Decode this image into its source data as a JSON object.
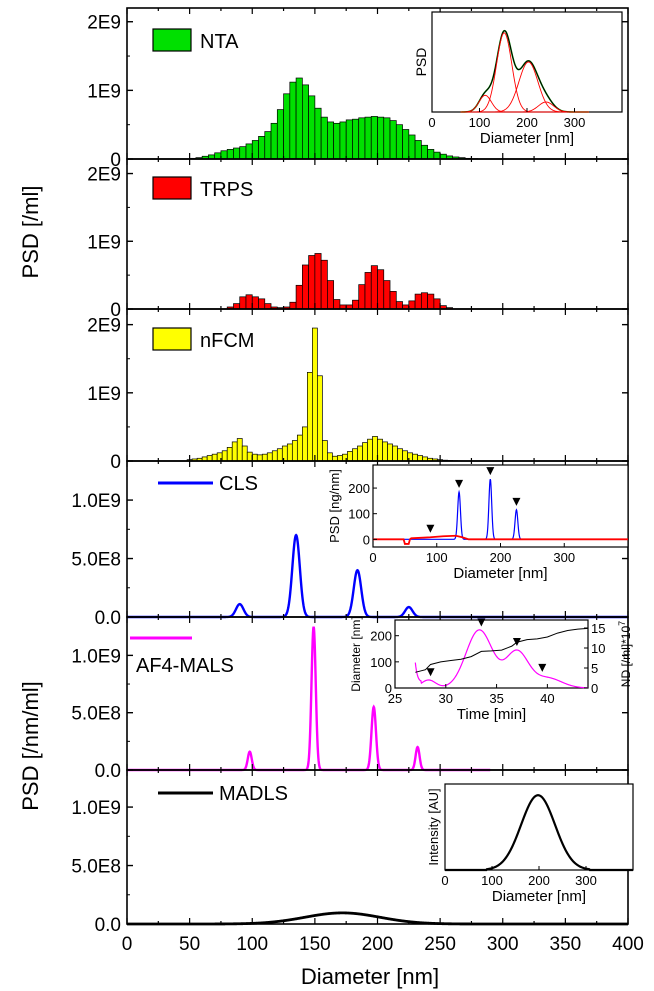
{
  "figure": {
    "xlabel": "Diameter [nm]",
    "ylabel_top": "PSD [/ml]",
    "ylabel_bottom": "PSD [/nm/ml]",
    "x_ticks": [
      "0",
      "50",
      "100",
      "150",
      "200",
      "250",
      "300",
      "350",
      "400"
    ]
  },
  "chart_data": [
    {
      "id": "nta",
      "type": "bar",
      "legend": "NTA",
      "color": "#00e000",
      "xlim": [
        0,
        400
      ],
      "ylim": [
        0,
        2200000000
      ],
      "y_ticks": [
        {
          "v": 0,
          "label": "0"
        },
        {
          "v": 1000000000,
          "label": "1E9"
        },
        {
          "v": 2000000000,
          "label": "2E9"
        }
      ],
      "bin_width": 5,
      "bin_centers": [
        52.5,
        57.5,
        62.5,
        67.5,
        72.5,
        77.5,
        82.5,
        87.5,
        92.5,
        97.5,
        102.5,
        107.5,
        112.5,
        117.5,
        122.5,
        127.5,
        132.5,
        137.5,
        142.5,
        147.5,
        152.5,
        157.5,
        162.5,
        167.5,
        172.5,
        177.5,
        182.5,
        187.5,
        192.5,
        197.5,
        202.5,
        207.5,
        212.5,
        217.5,
        222.5,
        227.5,
        232.5,
        237.5,
        242.5,
        247.5,
        252.5,
        257.5,
        262.5,
        267.5,
        272.5,
        277.5
      ],
      "values": [
        10000000,
        20000000,
        40000000,
        60000000,
        90000000,
        120000000,
        140000000,
        160000000,
        180000000,
        220000000,
        270000000,
        330000000,
        400000000,
        520000000,
        720000000,
        950000000,
        1120000000,
        1180000000,
        1080000000,
        920000000,
        740000000,
        610000000,
        540000000,
        520000000,
        540000000,
        570000000,
        580000000,
        600000000,
        610000000,
        620000000,
        610000000,
        600000000,
        560000000,
        500000000,
        430000000,
        350000000,
        270000000,
        200000000,
        140000000,
        100000000,
        70000000,
        45000000,
        30000000,
        20000000,
        10000000,
        5000000
      ]
    },
    {
      "id": "trps",
      "type": "bar",
      "legend": "TRPS",
      "color": "#ff0000",
      "xlim": [
        0,
        400
      ],
      "ylim": [
        0,
        2200000000
      ],
      "y_ticks": [
        {
          "v": 0,
          "label": "0"
        },
        {
          "v": 1000000000,
          "label": "1E9"
        },
        {
          "v": 2000000000,
          "label": "2E9"
        }
      ],
      "bin_width": 5,
      "bin_centers": [
        82.5,
        87.5,
        92.5,
        97.5,
        102.5,
        107.5,
        112.5,
        117.5,
        122.5,
        127.5,
        132.5,
        137.5,
        142.5,
        147.5,
        152.5,
        157.5,
        162.5,
        167.5,
        172.5,
        177.5,
        182.5,
        187.5,
        192.5,
        197.5,
        202.5,
        207.5,
        212.5,
        217.5,
        222.5,
        227.5,
        232.5,
        237.5,
        242.5,
        247.5,
        252.5,
        257.5
      ],
      "values": [
        30000000,
        80000000,
        180000000,
        210000000,
        180000000,
        150000000,
        80000000,
        30000000,
        20000000,
        30000000,
        100000000,
        350000000,
        650000000,
        790000000,
        820000000,
        720000000,
        420000000,
        140000000,
        60000000,
        60000000,
        130000000,
        360000000,
        540000000,
        640000000,
        580000000,
        420000000,
        260000000,
        110000000,
        60000000,
        120000000,
        220000000,
        240000000,
        220000000,
        150000000,
        50000000,
        20000000
      ]
    },
    {
      "id": "nfcm",
      "type": "bar",
      "legend": "nFCM",
      "color": "#ffff00",
      "xlim": [
        0,
        400
      ],
      "ylim": [
        0,
        2200000000
      ],
      "y_ticks": [
        {
          "v": 0,
          "label": "0"
        },
        {
          "v": 1000000000,
          "label": "1E9"
        },
        {
          "v": 2000000000,
          "label": "2E9"
        }
      ],
      "bin_width": 4,
      "bin_centers": [
        50,
        54,
        58,
        62,
        66,
        70,
        74,
        78,
        82,
        86,
        90,
        94,
        98,
        102,
        106,
        110,
        114,
        118,
        122,
        126,
        130,
        134,
        138,
        142,
        146,
        150,
        154,
        158,
        162,
        166,
        170,
        174,
        178,
        182,
        186,
        190,
        194,
        198,
        202,
        206,
        210,
        214,
        218,
        222,
        226,
        230,
        234,
        238,
        242,
        246,
        250,
        254,
        258,
        262,
        266,
        270,
        274,
        278
      ],
      "values": [
        20000000,
        30000000,
        40000000,
        60000000,
        80000000,
        100000000,
        120000000,
        150000000,
        200000000,
        280000000,
        330000000,
        220000000,
        130000000,
        100000000,
        90000000,
        100000000,
        120000000,
        150000000,
        180000000,
        220000000,
        250000000,
        300000000,
        380000000,
        500000000,
        1300000000,
        1950000000,
        1250000000,
        300000000,
        120000000,
        70000000,
        80000000,
        100000000,
        140000000,
        180000000,
        220000000,
        270000000,
        320000000,
        360000000,
        320000000,
        280000000,
        250000000,
        220000000,
        180000000,
        150000000,
        120000000,
        100000000,
        80000000,
        60000000,
        40000000,
        30000000,
        20000000,
        12000000,
        8000000,
        5000000,
        3000000,
        2000000,
        1000000,
        500000
      ]
    },
    {
      "id": "cls",
      "type": "line",
      "legend": "CLS",
      "color": "#0000ff",
      "xlim": [
        0,
        400
      ],
      "ylim": [
        0,
        1300000000
      ],
      "y_ticks": [
        {
          "v": 0,
          "label": "0.0"
        },
        {
          "v": 500000000,
          "label": "5.0E8"
        },
        {
          "v": 1000000000,
          "label": "1.0E9"
        }
      ],
      "peaks": [
        {
          "center": 90,
          "height": 110000000,
          "sigma": 3
        },
        {
          "center": 135,
          "height": 700000000,
          "sigma": 3
        },
        {
          "center": 184,
          "height": 400000000,
          "sigma": 3
        },
        {
          "center": 225,
          "height": 85000000,
          "sigma": 3
        }
      ],
      "x_range": [
        0,
        400
      ]
    },
    {
      "id": "af4",
      "type": "line",
      "legend": "AF4-MALS",
      "color": "#ff00ff",
      "xlim": [
        0,
        400
      ],
      "ylim": [
        0,
        1300000000
      ],
      "y_ticks": [
        {
          "v": 0,
          "label": "0.0"
        },
        {
          "v": 500000000,
          "label": "5.0E8"
        },
        {
          "v": 1000000000,
          "label": "1.0E9"
        }
      ],
      "peaks": [
        {
          "center": 98,
          "height": 160000000,
          "sigma": 1.6
        },
        {
          "center": 149,
          "height": 1250000000,
          "sigma": 1.7
        },
        {
          "center": 197,
          "height": 550000000,
          "sigma": 1.8
        },
        {
          "center": 232,
          "height": 200000000,
          "sigma": 1.6
        }
      ],
      "x_range": [
        0,
        290
      ]
    },
    {
      "id": "madls",
      "type": "line",
      "legend": "MADLS",
      "color": "#000000",
      "xlim": [
        0,
        400
      ],
      "ylim": [
        0,
        1300000000
      ],
      "y_ticks": [
        {
          "v": 0,
          "label": "0.0"
        },
        {
          "v": 500000000,
          "label": "5.0E8"
        },
        {
          "v": 1000000000,
          "label": "1.0E9"
        }
      ],
      "peaks": [
        {
          "center": 172,
          "height": 95000000,
          "sigma": 30
        }
      ],
      "x_range": [
        0,
        400
      ]
    }
  ],
  "insets": [
    {
      "id": "nta-inset",
      "xlabel": "Diameter [nm]",
      "ylabel": "PSD",
      "x_ticks": [
        {
          "v": 0,
          "label": "0"
        },
        {
          "v": 100,
          "label": "100"
        },
        {
          "v": 200,
          "label": "200"
        },
        {
          "v": 300,
          "label": "300"
        }
      ],
      "xlim": [
        0,
        400
      ],
      "ylim": [
        0,
        1.2
      ],
      "series": [
        {
          "color": "#00a000",
          "components": [
            {
              "c": 112,
              "h": 0.2,
              "s": 13
            },
            {
              "c": 152,
              "h": 0.95,
              "s": 16
            },
            {
              "c": 203,
              "h": 0.6,
              "s": 20
            },
            {
              "c": 240,
              "h": 0.12,
              "s": 16
            }
          ],
          "width": 1.6
        },
        {
          "color": "#000000",
          "components": [
            {
              "c": 112,
              "h": 0.2,
              "s": 13
            },
            {
              "c": 152,
              "h": 0.95,
              "s": 16
            },
            {
              "c": 203,
              "h": 0.6,
              "s": 20
            },
            {
              "c": 240,
              "h": 0.12,
              "s": 16
            }
          ],
          "width": 1.0
        },
        {
          "color": "#ff0000",
          "components": [
            {
              "c": 112,
              "h": 0.2,
              "s": 13
            }
          ],
          "width": 0.9
        },
        {
          "color": "#ff0000",
          "components": [
            {
              "c": 152,
              "h": 0.95,
              "s": 16
            }
          ],
          "width": 0.9
        },
        {
          "color": "#ff0000",
          "components": [
            {
              "c": 203,
              "h": 0.6,
              "s": 20
            }
          ],
          "width": 0.9
        },
        {
          "color": "#ff0000",
          "components": [
            {
              "c": 240,
              "h": 0.12,
              "s": 16
            }
          ],
          "width": 0.9
        }
      ]
    },
    {
      "id": "cls-inset",
      "xlabel": "Diameter [nm]",
      "ylabel": "PSD [ng/nm]",
      "x_ticks": [
        {
          "v": 0,
          "label": "0"
        },
        {
          "v": 100,
          "label": "100"
        },
        {
          "v": 200,
          "label": "200"
        },
        {
          "v": 300,
          "label": "300"
        }
      ],
      "y_ticks": [
        {
          "v": 0,
          "label": "0"
        },
        {
          "v": 100,
          "label": "100"
        },
        {
          "v": 200,
          "label": "200"
        }
      ],
      "xlim": [
        0,
        400
      ],
      "ylim": [
        -30,
        290
      ],
      "blue_peaks": [
        {
          "c": 135,
          "h": 185,
          "s": 2.2
        },
        {
          "c": 184,
          "h": 235,
          "s": 2.2
        },
        {
          "c": 225,
          "h": 115,
          "s": 2.2
        }
      ],
      "red_line": [
        [
          0,
          0
        ],
        [
          48,
          0
        ],
        [
          50,
          -18
        ],
        [
          56,
          -18
        ],
        [
          58,
          0
        ],
        [
          60,
          4
        ],
        [
          90,
          8
        ],
        [
          110,
          12
        ],
        [
          130,
          14
        ],
        [
          140,
          8
        ],
        [
          150,
          0
        ],
        [
          400,
          0
        ]
      ],
      "markers": [
        90,
        135,
        184,
        225
      ]
    },
    {
      "id": "af4-inset",
      "xlabel": "Time [min]",
      "ylabel": "Diameter [nm]",
      "ylabel_right": "ND [/ml]*10",
      "ylabel_right_exp": "7",
      "x_ticks": [
        {
          "v": 25,
          "label": "25"
        },
        {
          "v": 30,
          "label": "30"
        },
        {
          "v": 35,
          "label": "35"
        },
        {
          "v": 40,
          "label": "40"
        }
      ],
      "y_ticks": [
        {
          "v": 0,
          "label": "0"
        },
        {
          "v": 100,
          "label": "100"
        },
        {
          "v": 200,
          "label": "200"
        }
      ],
      "y2_ticks": [
        {
          "v": 0,
          "label": "0"
        },
        {
          "v": 5,
          "label": "5"
        },
        {
          "v": 10,
          "label": "10"
        },
        {
          "v": 15,
          "label": "15"
        }
      ],
      "xlim": [
        25,
        44
      ],
      "ylim": [
        0,
        260
      ],
      "y2lim": [
        0,
        17
      ],
      "diameter_line": [
        [
          27,
          60
        ],
        [
          28,
          70
        ],
        [
          28.5,
          90
        ],
        [
          29.5,
          100
        ],
        [
          30.5,
          105
        ],
        [
          31.5,
          110
        ],
        [
          32.5,
          120
        ],
        [
          33.5,
          140
        ],
        [
          34.5,
          142
        ],
        [
          35.5,
          145
        ],
        [
          36.5,
          160
        ],
        [
          37,
          175
        ],
        [
          38,
          185
        ],
        [
          39,
          188
        ],
        [
          40,
          195
        ],
        [
          41,
          210
        ],
        [
          42,
          220
        ],
        [
          43,
          225
        ],
        [
          44,
          228
        ]
      ],
      "nd_peaks": [
        {
          "c": 28.3,
          "h": 2.0,
          "s": 0.7
        },
        {
          "c": 33.3,
          "h": 14.5,
          "s": 1.3
        },
        {
          "c": 37,
          "h": 9.0,
          "s": 1.1
        },
        {
          "c": 40,
          "h": 2.5,
          "s": 1.4
        }
      ],
      "markers": [
        28.5,
        33.5,
        37,
        39.5
      ]
    },
    {
      "id": "madls-inset",
      "xlabel": "Diameter [nm]",
      "ylabel": "Intensity [AU]",
      "x_ticks": [
        {
          "v": 0,
          "label": "0"
        },
        {
          "v": 100,
          "label": "100"
        },
        {
          "v": 200,
          "label": "200"
        },
        {
          "v": 300,
          "label": "300"
        }
      ],
      "xlim": [
        0,
        400
      ],
      "ylim": [
        0,
        1.15
      ],
      "peak": {
        "c": 198,
        "h": 1.0,
        "s": 36
      }
    }
  ]
}
